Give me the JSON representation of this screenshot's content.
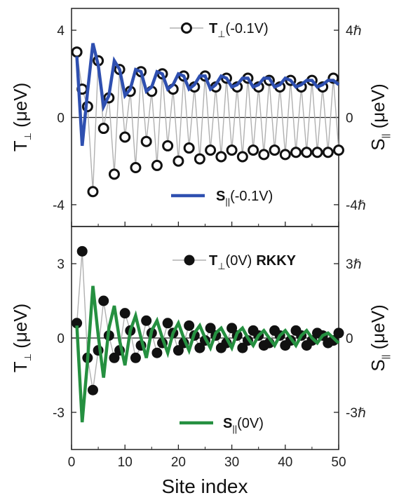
{
  "xlabel": "Site index",
  "chart_data": [
    {
      "type": "line",
      "panel": "top",
      "xlim": [
        0,
        50
      ],
      "ylim_left": [
        -5,
        5
      ],
      "ylabel_left": "T",
      "ylabel_left_sub": "⊥",
      "ylabel_left_unit": "(μeV)",
      "ylabel_right": "S",
      "ylabel_right_sub": "||",
      "ylabel_right_unit": "(μeV)",
      "left_ticks": [
        {
          "v": -4,
          "label": "-4"
        },
        {
          "v": 0,
          "label": "0"
        },
        {
          "v": 4,
          "label": "4"
        }
      ],
      "right_ticks": [
        {
          "v": -4,
          "label": "-4ℏ"
        },
        {
          "v": 0,
          "label": "0"
        },
        {
          "v": 4,
          "label": "4ℏ"
        }
      ],
      "x_ticks": [
        0,
        10,
        20,
        30,
        40,
        50
      ],
      "x_tick_labels": [],
      "grid": false,
      "series": [
        {
          "name": "T⊥(-0.1V)",
          "legend_main": "T",
          "legend_sub": "⊥",
          "legend_tail": "(-0.1V)",
          "style": "open-circles-with-thin-gray-line",
          "color": "#111111",
          "line_color": "#b0b0b0",
          "x": [
            1,
            2,
            3,
            4,
            5,
            6,
            7,
            8,
            9,
            10,
            11,
            12,
            13,
            14,
            15,
            16,
            17,
            18,
            19,
            20,
            21,
            22,
            23,
            24,
            25,
            26,
            27,
            28,
            29,
            30,
            31,
            32,
            33,
            34,
            35,
            36,
            37,
            38,
            39,
            40,
            41,
            42,
            43,
            44,
            45,
            46,
            47,
            48,
            49,
            50
          ],
          "values": [
            3.0,
            1.3,
            0.5,
            -3.4,
            2.6,
            -0.5,
            0.9,
            -2.6,
            2.2,
            -0.9,
            1.2,
            -2.3,
            2.1,
            -1.1,
            1.2,
            -2.2,
            2.0,
            -1.3,
            1.3,
            -2.0,
            1.9,
            -1.4,
            1.4,
            -1.9,
            1.9,
            -1.5,
            1.4,
            -1.8,
            1.8,
            -1.5,
            1.4,
            -1.8,
            1.8,
            -1.5,
            1.4,
            -1.7,
            1.7,
            -1.5,
            1.4,
            -1.7,
            1.7,
            -1.6,
            1.4,
            -1.6,
            1.7,
            -1.6,
            1.4,
            -1.6,
            1.8,
            -1.5
          ]
        },
        {
          "name": "S||(-0.1V)",
          "legend_main": "S",
          "legend_sub": "||",
          "legend_tail": "(-0.1V)",
          "style": "thick-line",
          "color": "#2e4fb0",
          "x": [
            1,
            2,
            3,
            4,
            5,
            6,
            7,
            8,
            9,
            10,
            11,
            12,
            13,
            14,
            15,
            16,
            17,
            18,
            19,
            20,
            21,
            22,
            23,
            24,
            25,
            26,
            27,
            28,
            29,
            30,
            31,
            32,
            33,
            34,
            35,
            36,
            37,
            38,
            39,
            40,
            41,
            42,
            43,
            44,
            45,
            46,
            47,
            48,
            49,
            50
          ],
          "values": [
            2.8,
            -1.3,
            1.2,
            3.4,
            2.4,
            0.5,
            1.0,
            2.6,
            2.2,
            1.0,
            1.3,
            2.2,
            2.1,
            1.2,
            1.4,
            2.1,
            2.0,
            1.3,
            1.5,
            2.0,
            1.9,
            1.3,
            1.5,
            1.9,
            1.9,
            1.3,
            1.5,
            1.9,
            1.8,
            1.4,
            1.5,
            1.8,
            1.8,
            1.4,
            1.5,
            1.8,
            1.8,
            1.4,
            1.5,
            1.8,
            1.7,
            1.4,
            1.5,
            1.7,
            1.7,
            1.4,
            1.5,
            1.7,
            1.7,
            1.5
          ]
        }
      ]
    },
    {
      "type": "line",
      "panel": "bottom",
      "xlim": [
        0,
        50
      ],
      "ylim_left": [
        -4.5,
        4.5
      ],
      "ylabel_left": "T",
      "ylabel_left_sub": "⊥",
      "ylabel_left_unit": "(μeV)",
      "ylabel_right": "S",
      "ylabel_right_sub": "||",
      "ylabel_right_unit": "(μeV)",
      "left_ticks": [
        {
          "v": -3,
          "label": "-3"
        },
        {
          "v": 0,
          "label": "0"
        },
        {
          "v": 3,
          "label": "3"
        }
      ],
      "right_ticks": [
        {
          "v": -3,
          "label": "-3ℏ"
        },
        {
          "v": 0,
          "label": "0"
        },
        {
          "v": 3,
          "label": "3ℏ"
        }
      ],
      "x_ticks": [
        0,
        10,
        20,
        30,
        40,
        50
      ],
      "x_tick_labels": [
        "0",
        "10",
        "20",
        "30",
        "40",
        "50"
      ],
      "grid": false,
      "series": [
        {
          "name": "T⊥(0V) RKKY",
          "legend_main": "T",
          "legend_sub": "⊥",
          "legend_tail": "(0V)",
          "legend_extra": "RKKY",
          "style": "filled-circles-with-thin-gray-line",
          "color": "#111111",
          "line_color": "#b0b0b0",
          "x": [
            1,
            2,
            3,
            4,
            5,
            6,
            7,
            8,
            9,
            10,
            11,
            12,
            13,
            14,
            15,
            16,
            17,
            18,
            19,
            20,
            21,
            22,
            23,
            24,
            25,
            26,
            27,
            28,
            29,
            30,
            31,
            32,
            33,
            34,
            35,
            36,
            37,
            38,
            39,
            40,
            41,
            42,
            43,
            44,
            45,
            46,
            47,
            48,
            49,
            50
          ],
          "values": [
            0.6,
            3.5,
            -0.8,
            -2.1,
            -0.5,
            1.5,
            0.1,
            -0.8,
            -0.5,
            1.0,
            0.3,
            -0.8,
            -0.3,
            0.7,
            0.2,
            -0.6,
            -0.2,
            0.6,
            0.2,
            -0.5,
            -0.2,
            0.5,
            0.1,
            -0.4,
            -0.1,
            0.4,
            0.1,
            -0.4,
            -0.2,
            0.4,
            0.1,
            -0.4,
            -0.1,
            0.3,
            0.1,
            -0.3,
            -0.2,
            0.3,
            0.1,
            -0.3,
            -0.1,
            0.3,
            0.1,
            -0.3,
            -0.1,
            0.2,
            0.1,
            -0.2,
            -0.1,
            0.2
          ]
        },
        {
          "name": "S||(0V)",
          "legend_main": "S",
          "legend_sub": "||",
          "legend_tail": "(0V)",
          "style": "thick-line",
          "color": "#259040",
          "x": [
            1,
            2,
            3,
            4,
            5,
            6,
            7,
            8,
            9,
            10,
            11,
            12,
            13,
            14,
            15,
            16,
            17,
            18,
            19,
            20,
            21,
            22,
            23,
            24,
            25,
            26,
            27,
            28,
            29,
            30,
            31,
            32,
            33,
            34,
            35,
            36,
            37,
            38,
            39,
            40,
            41,
            42,
            43,
            44,
            45,
            46,
            47,
            48,
            49,
            50
          ],
          "values": [
            0.5,
            -3.4,
            -0.9,
            2.1,
            0.1,
            -1.6,
            0.4,
            1.3,
            -0.1,
            -1.1,
            0.3,
            0.9,
            0.0,
            -0.8,
            0.3,
            0.7,
            0.0,
            -0.6,
            0.2,
            0.6,
            0.0,
            -0.5,
            0.2,
            0.5,
            0.0,
            -0.4,
            0.2,
            0.4,
            0.0,
            -0.4,
            0.2,
            0.4,
            0.0,
            -0.3,
            0.1,
            0.3,
            0.0,
            -0.3,
            0.1,
            0.3,
            0.0,
            -0.3,
            0.1,
            0.3,
            0.0,
            -0.2,
            0.1,
            0.2,
            0.0,
            -0.2
          ]
        }
      ]
    }
  ]
}
